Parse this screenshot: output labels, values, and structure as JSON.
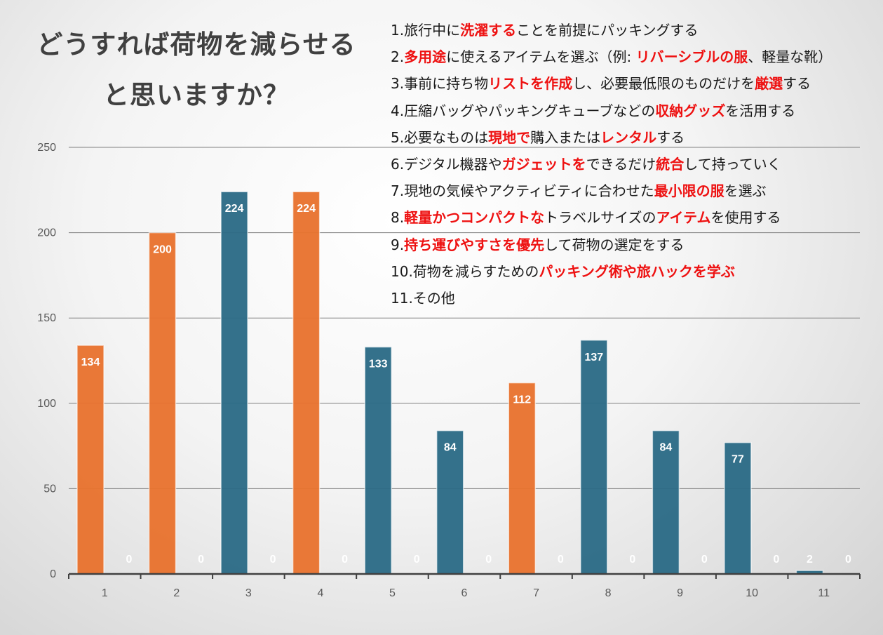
{
  "title": [
    "どうすれば荷物を減らせる",
    "と思いますか？"
  ],
  "legend": [
    [
      {
        "t": "1.旅行中に"
      },
      {
        "t": "洗濯する",
        "hl": true
      },
      {
        "t": "ことを前提にパッキングする"
      }
    ],
    [
      {
        "t": "2."
      },
      {
        "t": "多用途",
        "hl": true
      },
      {
        "t": "に使えるアイテムを選ぶ（例: "
      },
      {
        "t": "リバーシブルの服",
        "hl": true
      },
      {
        "t": "、軽量な靴）"
      }
    ],
    [
      {
        "t": "3.事前に持ち物"
      },
      {
        "t": "リストを作成",
        "hl": true
      },
      {
        "t": "し、必要最低限のものだけを"
      },
      {
        "t": "厳選",
        "hl": true
      },
      {
        "t": "する"
      }
    ],
    [
      {
        "t": "4.圧縮バッグやパッキングキューブなどの"
      },
      {
        "t": "収納グッズ",
        "hl": true
      },
      {
        "t": "を活用する"
      }
    ],
    [
      {
        "t": "5.必要なものは"
      },
      {
        "t": "現地で",
        "hl": true
      },
      {
        "t": "購入または"
      },
      {
        "t": "レンタル",
        "hl": true
      },
      {
        "t": "する"
      }
    ],
    [
      {
        "t": "6.デジタル機器や"
      },
      {
        "t": "ガジェットを",
        "hl": true
      },
      {
        "t": "できるだけ"
      },
      {
        "t": "統合",
        "hl": true
      },
      {
        "t": "して持っていく"
      }
    ],
    [
      {
        "t": "7.現地の気候やアクティビティに合わせた"
      },
      {
        "t": "最小限の服",
        "hl": true
      },
      {
        "t": "を選ぶ"
      }
    ],
    [
      {
        "t": "8."
      },
      {
        "t": "軽量かつコンパクトな",
        "hl": true
      },
      {
        "t": "トラベルサイズの"
      },
      {
        "t": "アイテム",
        "hl": true
      },
      {
        "t": "を使用する"
      }
    ],
    [
      {
        "t": "9."
      },
      {
        "t": "持ち運びやすさを優先",
        "hl": true
      },
      {
        "t": "して荷物の選定をする"
      }
    ],
    [
      {
        "t": "10.荷物を減らすための"
      },
      {
        "t": "パッキング術や旅ハックを学ぶ",
        "hl": true
      }
    ],
    [
      {
        "t": "11.その他"
      }
    ]
  ],
  "chart_data": {
    "type": "bar",
    "categories": [
      "1",
      "2",
      "3",
      "4",
      "5",
      "6",
      "7",
      "8",
      "9",
      "10",
      "11"
    ],
    "series": [
      {
        "values": [
          134,
          200,
          224,
          224,
          133,
          84,
          112,
          137,
          84,
          77,
          2
        ],
        "bar_colors": [
          "#e8722f",
          "#e8722f",
          "#2c6b86",
          "#e8722f",
          "#2c6b86",
          "#2c6b86",
          "#e8722f",
          "#2c6b86",
          "#2c6b86",
          "#2c6b86",
          "#2c6b86"
        ]
      },
      {
        "values": [
          0,
          0,
          0,
          0,
          0,
          0,
          0,
          0,
          0,
          0,
          0
        ]
      }
    ],
    "yticks": [
      "0",
      "50",
      "100",
      "150",
      "200",
      "250"
    ],
    "ylim": [
      0,
      250
    ],
    "grid": true,
    "data_labels": true
  },
  "colors": {
    "highlight": "#ee1111",
    "orange": "#e8722f",
    "teal": "#2c6b86",
    "grid": "#7f7f7f",
    "axis": "#404040"
  }
}
